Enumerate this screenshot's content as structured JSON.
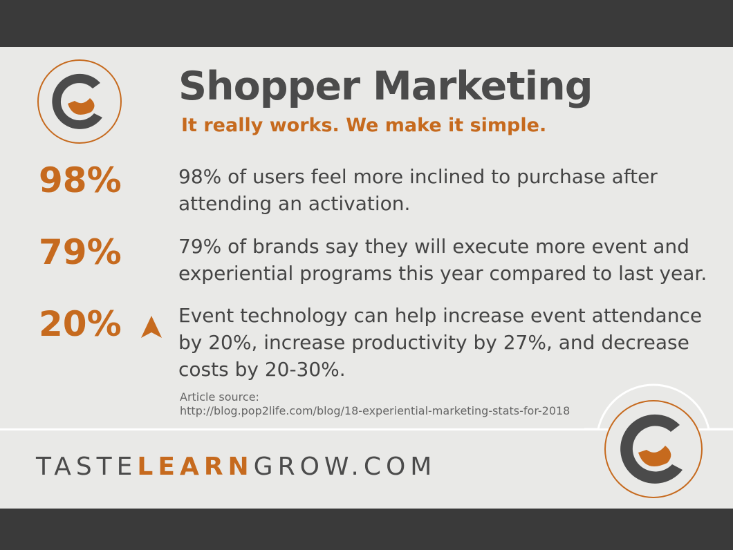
{
  "header": {
    "title": "Shopper Marketing",
    "subtitle": "It really works.  We make it simple."
  },
  "stats": [
    {
      "figure": "98%",
      "text": "98% of users feel more inclined to purchase after attending an activation."
    },
    {
      "figure": "79%",
      "text": "79% of brands say they will execute more event and experiential programs this year compared to last year."
    },
    {
      "figure": "20%",
      "text": "Event technology can help increase event attendance by 20%, increase productivity by 27%, and decrease costs by 20-30%."
    }
  ],
  "source": {
    "label": "Article source:",
    "url": "http://blog.pop2life.com/blog/18-experiential-marketing-stats-for-2018"
  },
  "footer": {
    "brand": [
      "TASTE",
      "LEARN",
      "GROW",
      ".COM"
    ]
  }
}
